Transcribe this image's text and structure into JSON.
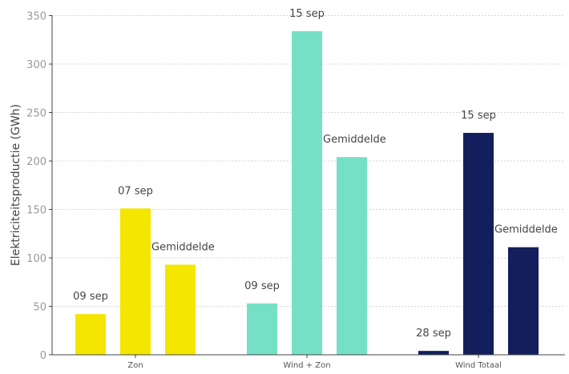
{
  "chart_data": {
    "type": "bar",
    "title": "",
    "xlabel": "",
    "ylabel": "Elektriciteitsproductie (GWh)",
    "ylim": [
      0,
      350
    ],
    "yticks": [
      0,
      50,
      100,
      150,
      200,
      250,
      300,
      350
    ],
    "grid": true,
    "legend": "none",
    "groups": [
      {
        "category": "Zon",
        "color": "#f5e600",
        "bars": [
          {
            "label": "09 sep",
            "value": 42
          },
          {
            "label": "07 sep",
            "value": 151
          },
          {
            "label": "Gemiddelde",
            "value": 93
          }
        ]
      },
      {
        "category": "Wind + Zon",
        "color": "#76e0c6",
        "bars": [
          {
            "label": "09 sep",
            "value": 53
          },
          {
            "label": "15 sep",
            "value": 334
          },
          {
            "label": "Gemiddelde",
            "value": 204
          }
        ]
      },
      {
        "category": "Wind Totaal",
        "color": "#121f5c",
        "bars": [
          {
            "label": "28 sep",
            "value": 4
          },
          {
            "label": "15 sep",
            "value": 229
          },
          {
            "label": "Gemiddelde",
            "value": 111
          }
        ]
      }
    ]
  }
}
